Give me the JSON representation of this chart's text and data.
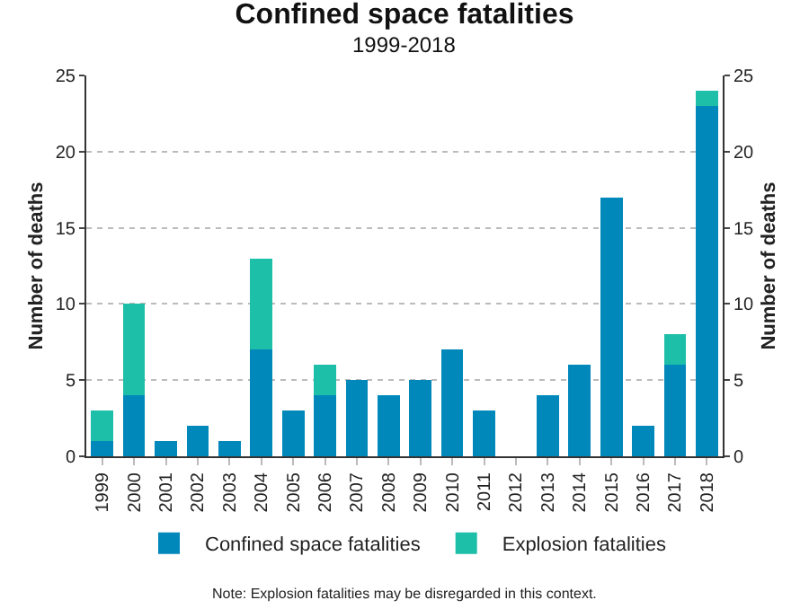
{
  "chart_data": {
    "type": "bar",
    "title": "Confined space fatalities",
    "subtitle": "1999-2018",
    "ylabel": "Number of deaths",
    "y2label": "Number of deaths",
    "categories": [
      "1999",
      "2000",
      "2001",
      "2002",
      "2003",
      "2004",
      "2005",
      "2006",
      "2007",
      "2008",
      "2009",
      "2010",
      "2011",
      "2012",
      "2013",
      "2014",
      "2015",
      "2016",
      "2017",
      "2018"
    ],
    "stacked": true,
    "series": [
      {
        "name": "Confined space fatalities",
        "color": "#0088bb",
        "values": [
          1,
          4,
          1,
          2,
          1,
          7,
          3,
          4,
          5,
          4,
          5,
          7,
          3,
          0,
          4,
          6,
          17,
          2,
          6,
          23
        ]
      },
      {
        "name": "Explosion fatalities",
        "color": "#1dbfa8",
        "values": [
          2,
          6,
          0,
          0,
          0,
          6,
          0,
          2,
          0,
          0,
          0,
          0,
          0,
          0,
          0,
          0,
          0,
          0,
          2,
          1
        ]
      }
    ],
    "ylim": [
      0,
      25
    ],
    "yticks": [
      0,
      5,
      10,
      15,
      20,
      25
    ],
    "y2lim": [
      0,
      25
    ],
    "y2ticks": [
      0,
      5,
      10,
      15,
      20,
      25
    ],
    "grid": "y",
    "legend": "bottom",
    "annotations": [
      "Note: Explosion fatalities may be disregarded in this context."
    ]
  }
}
